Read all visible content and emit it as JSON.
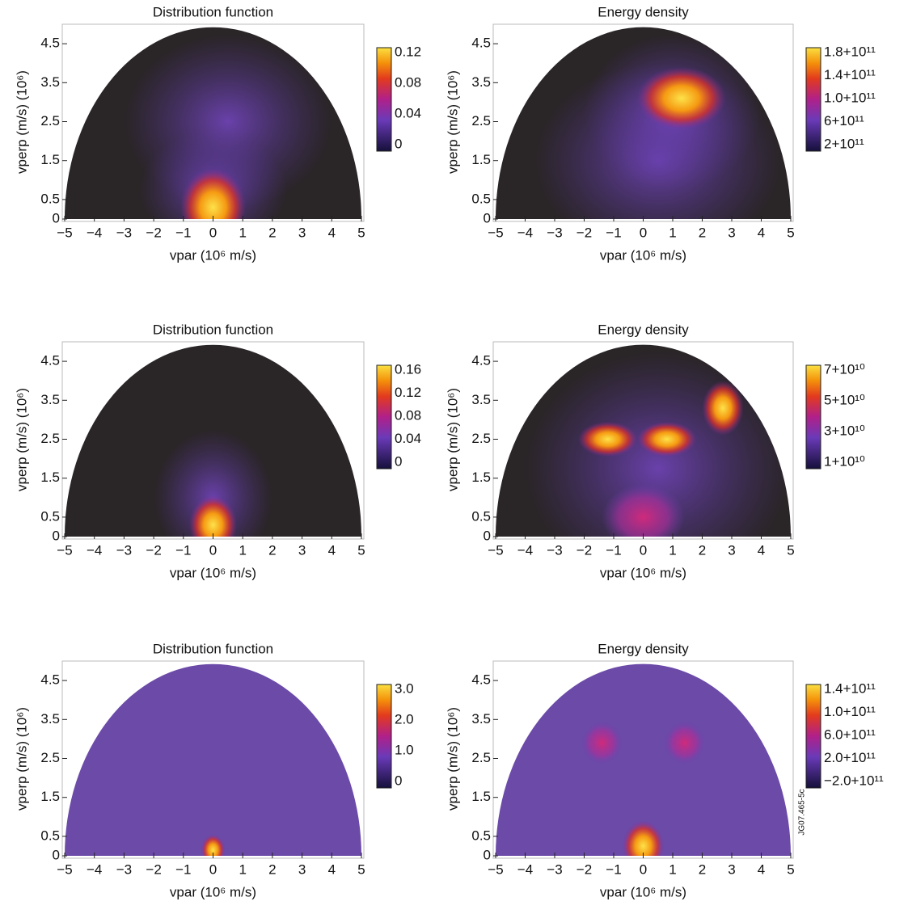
{
  "chart_data": [
    {
      "type": "heatmap",
      "title": "Distribution function",
      "xlabel": "vpar (10⁶ m/s)",
      "ylabel": "vperp (m/s) (10⁶)",
      "xlim": [
        -5,
        5
      ],
      "ylim": [
        0,
        5
      ],
      "xticks": [
        {
          "value": -5,
          "label": "−5"
        },
        {
          "value": -4,
          "label": "−4"
        },
        {
          "value": -3,
          "label": "−3"
        },
        {
          "value": -2,
          "label": "−2"
        },
        {
          "value": -1,
          "label": "−1"
        },
        0,
        1,
        2,
        3,
        4,
        5
      ],
      "yticks": [
        0,
        0.5,
        1.5,
        2.5,
        3.5,
        4.5
      ],
      "colorbar_labels": [
        "0.12",
        "0.08",
        "0.04",
        "0"
      ]
    },
    {
      "type": "heatmap",
      "title": "Energy density",
      "xlabel": "vpar (10⁶ m/s)",
      "ylabel": "vperp (m/s) (10⁶)",
      "xlim": [
        -5,
        5
      ],
      "ylim": [
        0,
        5
      ],
      "xticks": [
        {
          "value": -5,
          "label": "−5"
        },
        {
          "value": -4,
          "label": "−4"
        },
        {
          "value": -3,
          "label": "−3"
        },
        {
          "value": -2,
          "label": "−2"
        },
        {
          "value": -1,
          "label": "−1"
        },
        0,
        1,
        2,
        3,
        4,
        5
      ],
      "yticks": [
        0,
        0.5,
        1.5,
        2.5,
        3.5,
        4.5
      ],
      "colorbar_labels": [
        "1.8+10¹¹",
        "1.4+10¹¹",
        "1.0+10¹¹",
        "6+10¹¹",
        "2+10¹¹"
      ]
    },
    {
      "type": "heatmap",
      "title": "Distribution function",
      "xlabel": "vpar (10⁶ m/s)",
      "ylabel": "vperp (m/s) (10⁶)",
      "xlim": [
        -5,
        5
      ],
      "ylim": [
        0,
        5
      ],
      "xticks": [
        {
          "value": -5,
          "label": "−5"
        },
        {
          "value": -4,
          "label": "−4"
        },
        {
          "value": -3,
          "label": "−3"
        },
        {
          "value": -2,
          "label": "−2"
        },
        {
          "value": -1,
          "label": "−1"
        },
        0,
        1,
        2,
        3,
        4,
        5
      ],
      "yticks": [
        0,
        0.5,
        1.5,
        2.5,
        3.5,
        4.5
      ],
      "colorbar_labels": [
        "0.16",
        "0.12",
        "0.08",
        "0.04",
        "0"
      ]
    },
    {
      "type": "heatmap",
      "title": "Energy density",
      "xlabel": "vpar (10⁶ m/s)",
      "ylabel": "vperp (m/s) (10⁶)",
      "xlim": [
        -5,
        5
      ],
      "ylim": [
        0,
        5
      ],
      "xticks": [
        {
          "value": -5,
          "label": "−5"
        },
        {
          "value": -4,
          "label": "−4"
        },
        {
          "value": -3,
          "label": "−3"
        },
        {
          "value": -2,
          "label": "−2"
        },
        {
          "value": -1,
          "label": "−1"
        },
        0,
        1,
        2,
        3,
        4,
        5
      ],
      "yticks": [
        0,
        0.5,
        1.5,
        2.5,
        3.5,
        4.5
      ],
      "colorbar_labels": [
        "7+10¹⁰",
        "5+10¹⁰",
        "3+10¹⁰",
        "1+10¹⁰"
      ]
    },
    {
      "type": "heatmap",
      "title": "Distribution function",
      "xlabel": "vpar (10⁶ m/s)",
      "ylabel": "vperp (m/s) (10⁶)",
      "xlim": [
        -5,
        5
      ],
      "ylim": [
        0,
        5
      ],
      "xticks": [
        {
          "value": -5,
          "label": "−5"
        },
        {
          "value": -4,
          "label": "−4"
        },
        {
          "value": -3,
          "label": "−3"
        },
        {
          "value": -2,
          "label": "−2"
        },
        {
          "value": -1,
          "label": "−1"
        },
        0,
        1,
        2,
        3,
        4,
        5
      ],
      "yticks": [
        0,
        0.5,
        1.5,
        2.5,
        3.5,
        4.5
      ],
      "colorbar_labels": [
        "3.0",
        "2.0",
        "1.0",
        "0"
      ]
    },
    {
      "type": "heatmap",
      "title": "Energy density",
      "xlabel": "vpar (10⁶ m/s)",
      "ylabel": "vperp (m/s) (10⁶)",
      "xlim": [
        -5,
        5
      ],
      "ylim": [
        0,
        5
      ],
      "xticks": [
        {
          "value": -5,
          "label": "−5"
        },
        {
          "value": -4,
          "label": "−4"
        },
        {
          "value": -3,
          "label": "−3"
        },
        {
          "value": -2,
          "label": "−2"
        },
        {
          "value": -1,
          "label": "−1"
        },
        0,
        1,
        2,
        3,
        4,
        5
      ],
      "yticks": [
        0,
        0.5,
        1.5,
        2.5,
        3.5,
        4.5
      ],
      "colorbar_labels": [
        "1.4+10¹¹",
        "1.0+10¹¹",
        "6.0+10¹¹",
        "2.0+10¹¹",
        "−2.0+10¹¹"
      ]
    }
  ],
  "figure_id": "JG07.465-5c"
}
